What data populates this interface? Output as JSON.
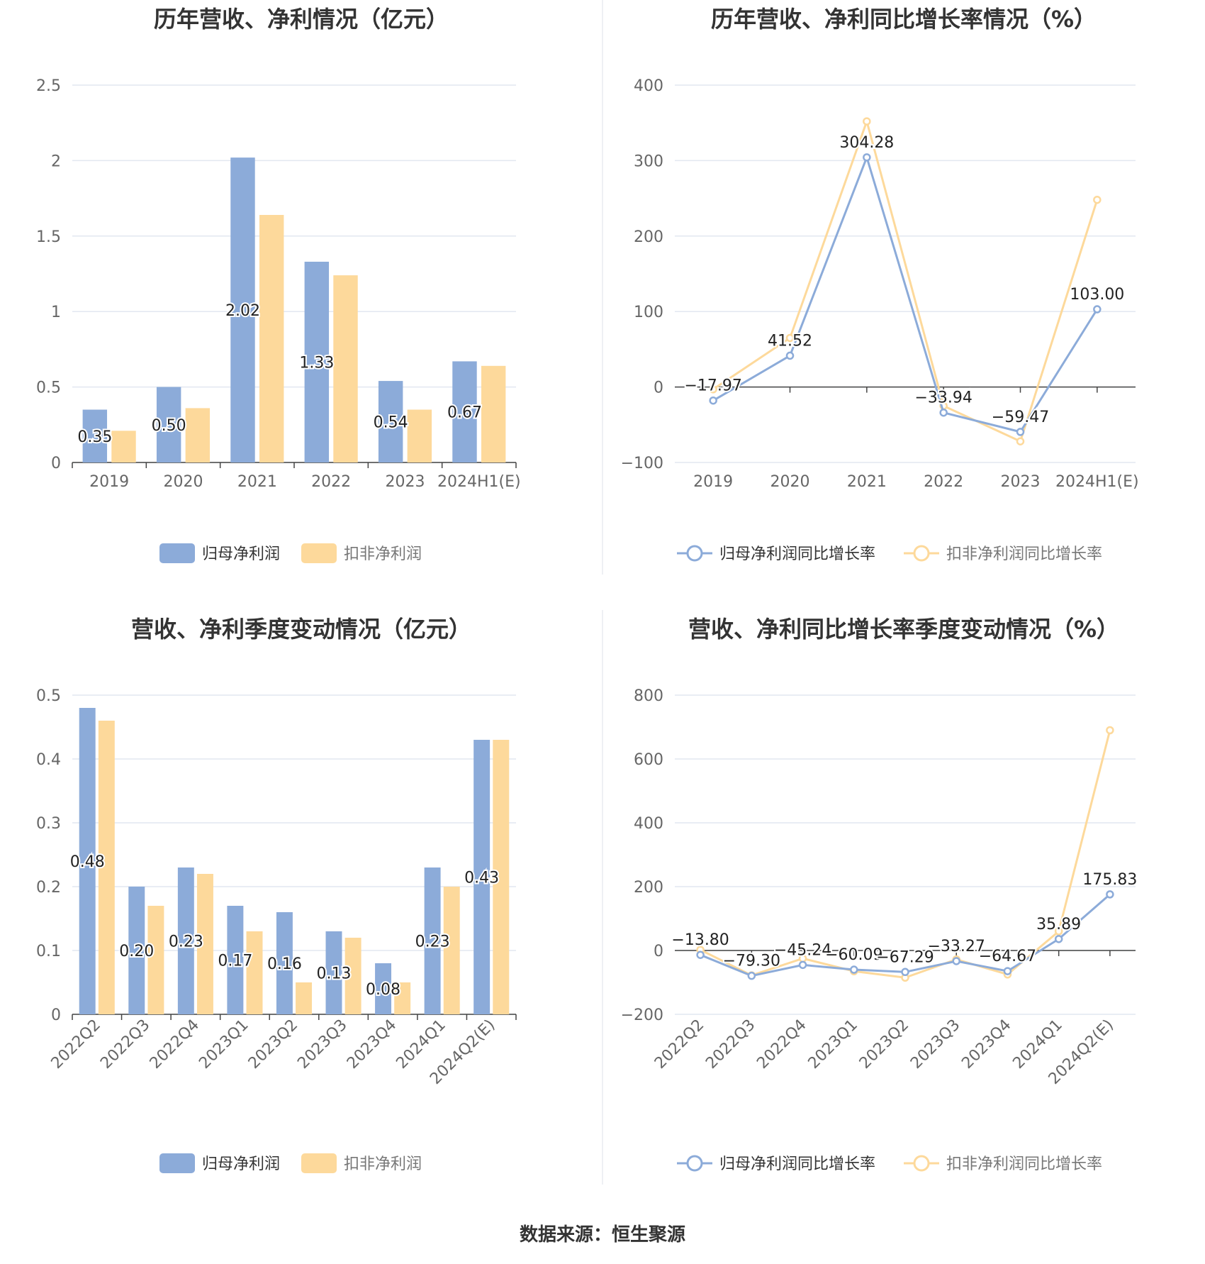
{
  "colors": {
    "blue": "#8cabd9",
    "yellow": "#fdd99b",
    "grid": "#e2e7f0",
    "axis": "#444444",
    "tick_text": "#666666",
    "title": "#333333"
  },
  "source": "数据来源：恒生聚源",
  "chart_data": [
    {
      "type": "bar",
      "title": "历年营收、净利情况（亿元）",
      "categories": [
        "2019",
        "2020",
        "2021",
        "2022",
        "2023",
        "2024H1(E)"
      ],
      "ylim": [
        0,
        2.5
      ],
      "yticks": [
        "0",
        "0.5",
        "1",
        "1.5",
        "2",
        "2.5"
      ],
      "grid": true,
      "legend_position": "bottom",
      "series": [
        {
          "name": "归母净利润",
          "values": [
            0.35,
            0.5,
            2.02,
            1.33,
            0.54,
            0.67
          ],
          "labels": [
            "0.35",
            "0.50",
            "2.02",
            "1.33",
            "0.54",
            "0.67"
          ]
        },
        {
          "name": "扣非净利润",
          "values": [
            0.21,
            0.36,
            1.64,
            1.24,
            0.35,
            0.64
          ]
        }
      ]
    },
    {
      "type": "line",
      "title": "历年营收、净利同比增长率情况（%）",
      "categories": [
        "2019",
        "2020",
        "2021",
        "2022",
        "2023",
        "2024H1(E)"
      ],
      "ylim": [
        -100,
        400
      ],
      "yticks": [
        "−100",
        "0",
        "100",
        "200",
        "300",
        "400"
      ],
      "grid": true,
      "legend_position": "bottom",
      "series": [
        {
          "name": "归母净利润同比增长率",
          "values": [
            -17.97,
            41.52,
            304.28,
            -33.94,
            -59.47,
            103.0
          ],
          "labels": [
            "−17.97",
            "41.52",
            "304.28",
            "−33.94",
            "−59.47",
            "103.00"
          ]
        },
        {
          "name": "扣非净利润同比增长率",
          "values": [
            -3,
            65,
            352,
            -25,
            -72,
            248
          ]
        }
      ]
    },
    {
      "type": "bar",
      "title": "营收、净利季度变动情况（亿元）",
      "categories": [
        "2022Q2",
        "2022Q3",
        "2022Q4",
        "2023Q1",
        "2023Q2",
        "2023Q3",
        "2023Q4",
        "2024Q1",
        "2024Q2(E)"
      ],
      "ylim": [
        0,
        0.5
      ],
      "yticks": [
        "0",
        "0.1",
        "0.2",
        "0.3",
        "0.4",
        "0.5"
      ],
      "grid": true,
      "legend_position": "bottom",
      "series": [
        {
          "name": "归母净利润",
          "values": [
            0.48,
            0.2,
            0.23,
            0.17,
            0.16,
            0.13,
            0.08,
            0.23,
            0.43
          ],
          "labels": [
            "0.48",
            "0.20",
            "0.23",
            "0.17",
            "0.16",
            "0.13",
            "0.08",
            "0.23",
            "0.43"
          ]
        },
        {
          "name": "扣非净利润",
          "values": [
            0.46,
            0.17,
            0.22,
            0.13,
            0.05,
            0.12,
            0.05,
            0.2,
            0.43
          ]
        }
      ]
    },
    {
      "type": "line",
      "title": "营收、净利同比增长率季度变动情况（%）",
      "categories": [
        "2022Q2",
        "2022Q3",
        "2022Q4",
        "2023Q1",
        "2023Q2",
        "2023Q3",
        "2023Q4",
        "2024Q1",
        "2024Q2(E)"
      ],
      "ylim": [
        -200,
        800
      ],
      "yticks": [
        "−200",
        "0",
        "200",
        "400",
        "600",
        "800"
      ],
      "grid": true,
      "legend_position": "bottom",
      "series": [
        {
          "name": "归母净利润同比增长率",
          "values": [
            -13.8,
            -79.3,
            -45.24,
            -60.09,
            -67.29,
            -33.27,
            -64.67,
            35.89,
            175.83
          ],
          "labels": [
            "−13.80",
            "−79.30",
            "−45.24",
            "−60.09",
            "−67.29",
            "−33.27",
            "−64.67",
            "35.89",
            "175.83"
          ]
        },
        {
          "name": "扣非净利润同比增长率",
          "values": [
            2,
            -78,
            -25,
            -65,
            -85,
            -28,
            -75,
            60,
            690
          ]
        }
      ]
    }
  ]
}
